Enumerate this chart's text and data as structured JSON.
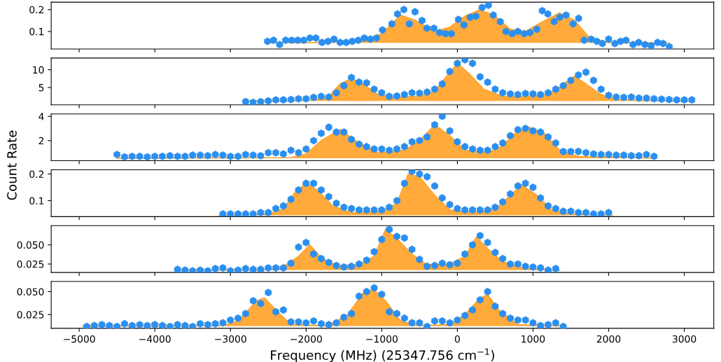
{
  "chart_data": [
    {
      "type": "scatter",
      "xlim": [
        -5370,
        3390
      ],
      "xticks": [
        {
          "value": -5000,
          "label": null
        },
        {
          "value": -4000,
          "label": null
        },
        {
          "value": -3000,
          "label": null
        },
        {
          "value": -2000,
          "label": null
        },
        {
          "value": -1000,
          "label": null
        },
        {
          "value": 0,
          "label": null
        },
        {
          "value": 1000,
          "label": null
        },
        {
          "value": 2000,
          "label": null
        },
        {
          "value": 3000,
          "label": null
        }
      ],
      "ylim": [
        0.02,
        0.234
      ],
      "yticks": [
        0.1,
        0.2
      ],
      "tick_labels": "y",
      "series": [
        {
          "type": "area",
          "color": "#ffa530",
          "x": [
            -2500,
            -1700,
            -1300,
            -1000,
            -750,
            -550,
            -300,
            -100,
            100,
            300,
            500,
            700,
            900,
            1100,
            1350,
            1550,
            1750,
            2000,
            2800
          ],
          "values": [
            0.048,
            0.05,
            0.055,
            0.09,
            0.175,
            0.15,
            0.1,
            0.12,
            0.17,
            0.2,
            0.17,
            0.11,
            0.1,
            0.14,
            0.185,
            0.15,
            0.07,
            0.05,
            0.048
          ]
        },
        {
          "type": "scatter",
          "color": "#2a8ff0",
          "x": [
            -2510,
            -2430,
            -2350,
            -2270,
            -2190,
            -2110,
            -2030,
            -1950,
            -1870,
            -1790,
            -1710,
            -1630,
            -1550,
            -1470,
            -1390,
            -1310,
            -1230,
            -1150,
            -1070,
            -990,
            -866,
            -792,
            -708,
            -635,
            -560,
            -467,
            -402,
            -310,
            -236,
            -155,
            -80,
            13,
            87,
            170,
            245,
            327,
            410,
            475,
            567,
            642,
            725,
            800,
            882,
            960,
            1050,
            1122,
            1196,
            1280,
            1354,
            1437,
            1530,
            1603,
            1677,
            1770,
            1844,
            1918,
            2000,
            2082,
            2156,
            2230,
            2322,
            2397,
            2480,
            2563,
            2647,
            2720,
            2803
          ],
          "values": [
            0.055,
            0.06,
            0.04,
            0.06,
            0.06,
            0.06,
            0.06,
            0.07,
            0.07,
            0.05,
            0.055,
            0.065,
            0.05,
            0.05,
            0.055,
            0.06,
            0.07,
            0.065,
            0.07,
            0.107,
            0.135,
            0.18,
            0.2,
            0.135,
            0.19,
            0.15,
            0.115,
            0.115,
            0.095,
            0.09,
            0.09,
            0.155,
            0.13,
            0.165,
            0.17,
            0.21,
            0.22,
            0.175,
            0.145,
            0.1,
            0.09,
            0.1,
            0.09,
            0.095,
            0.11,
            0.195,
            0.18,
            0.145,
            0.165,
            0.175,
            0.135,
            0.16,
            0.06,
            0.065,
            0.055,
            0.045,
            0.065,
            0.045,
            0.055,
            0.06,
            0.04,
            0.05,
            0.04,
            0.035,
            0.05,
            0.045,
            0.03
          ]
        }
      ]
    },
    {
      "type": "scatter",
      "xlim": [
        -5370,
        3390
      ],
      "xticks": [
        {
          "value": -5000,
          "label": null
        },
        {
          "value": -4000,
          "label": null
        },
        {
          "value": -3000,
          "label": null
        },
        {
          "value": -2000,
          "label": null
        },
        {
          "value": -1000,
          "label": null
        },
        {
          "value": 0,
          "label": null
        },
        {
          "value": 1000,
          "label": null
        },
        {
          "value": 2000,
          "label": null
        },
        {
          "value": 3000,
          "label": null
        }
      ],
      "ylim": [
        0.1,
        13.3
      ],
      "yticks": [
        5,
        10
      ],
      "tick_labels": "y",
      "series": [
        {
          "type": "area",
          "color": "#ffa530",
          "x": [
            -2800,
            -1900,
            -1700,
            -1550,
            -1400,
            -1250,
            -1050,
            -800,
            -500,
            -300,
            -150,
            0,
            150,
            350,
            600,
            900,
            1200,
            1400,
            1550,
            1700,
            1900,
            2100,
            2400,
            3100
          ],
          "values": [
            1.2,
            1.4,
            2.5,
            6,
            7.5,
            6,
            3,
            2.2,
            2.6,
            4,
            8,
            11.8,
            9,
            4.5,
            2.5,
            2.4,
            3,
            6,
            8.2,
            6,
            3,
            1.6,
            1.3,
            1.2
          ]
        },
        {
          "type": "scatter",
          "color": "#2a8ff0",
          "x": [
            -2800,
            -2700,
            -2600,
            -2500,
            -2400,
            -2300,
            -2200,
            -2100,
            -2000,
            -1900,
            -1800,
            -1700,
            -1600,
            -1500,
            -1400,
            -1300,
            -1200,
            -1100,
            -1000,
            -900,
            -800,
            -700,
            -600,
            -500,
            -400,
            -300,
            -200,
            -100,
            0,
            100,
            200,
            300,
            400,
            500,
            600,
            700,
            800,
            900,
            1000,
            1100,
            1200,
            1300,
            1400,
            1500,
            1600,
            1700,
            1800,
            1900,
            2000,
            2100,
            2200,
            2300,
            2400,
            2500,
            2600,
            2700,
            2800,
            2900,
            3000,
            3100
          ],
          "values": [
            1.0,
            0.8,
            1.0,
            1.2,
            1.5,
            1.5,
            1.6,
            1.8,
            1.8,
            2.2,
            2.5,
            2.3,
            3.5,
            5.5,
            7.8,
            6.5,
            6.3,
            4.5,
            3.5,
            2.5,
            2.6,
            3.0,
            3.5,
            3.4,
            3.7,
            4.5,
            6,
            9.5,
            11.8,
            12.8,
            11.8,
            8,
            6.5,
            4.5,
            3.5,
            3.2,
            3.0,
            3.3,
            3.2,
            3.0,
            3.5,
            4.5,
            5.5,
            7,
            8.5,
            9.3,
            7,
            4.5,
            2.8,
            2.3,
            2.2,
            2.3,
            2.0,
            2.0,
            1.8,
            1.7,
            1.6,
            1.5,
            1.5,
            1.5
          ]
        }
      ]
    },
    {
      "type": "scatter",
      "xlim": [
        -5370,
        3390
      ],
      "xticks": [
        {
          "value": -5000,
          "label": null
        },
        {
          "value": -4000,
          "label": null
        },
        {
          "value": -3000,
          "label": null
        },
        {
          "value": -2000,
          "label": null
        },
        {
          "value": -1000,
          "label": null
        },
        {
          "value": 0,
          "label": null
        },
        {
          "value": 1000,
          "label": null
        },
        {
          "value": 2000,
          "label": null
        },
        {
          "value": 3000,
          "label": null
        }
      ],
      "ylim": [
        0.34,
        4.2
      ],
      "yticks": [
        2,
        4
      ],
      "tick_labels": "y",
      "series": [
        {
          "type": "area",
          "color": "#ffa530",
          "x": [
            -4500,
            -2200,
            -2000,
            -1800,
            -1550,
            -1300,
            -1050,
            -700,
            -500,
            -300,
            -100,
            100,
            400,
            600,
            800,
            950,
            1150,
            1350,
            1600,
            2600
          ],
          "values": [
            0.55,
            0.6,
            0.9,
            2.0,
            2.9,
            1.8,
            1.0,
            1.2,
            2,
            3.3,
            2.4,
            1.2,
            1.0,
            1.6,
            2.8,
            3.1,
            2.6,
            1.2,
            0.7,
            0.55
          ]
        },
        {
          "type": "scatter",
          "color": "#2a8ff0",
          "x": [
            -4500,
            -4400,
            -4300,
            -4200,
            -4100,
            -4000,
            -3900,
            -3800,
            -3700,
            -3600,
            -3500,
            -3400,
            -3300,
            -3200,
            -3100,
            -3000,
            -2900,
            -2800,
            -2700,
            -2600,
            -2500,
            -2400,
            -2300,
            -2200,
            -2100,
            -2000,
            -1900,
            -1800,
            -1700,
            -1600,
            -1500,
            -1400,
            -1300,
            -1200,
            -1100,
            -1000,
            -900,
            -800,
            -700,
            -600,
            -500,
            -400,
            -300,
            -200,
            -100,
            0,
            100,
            200,
            300,
            400,
            500,
            600,
            700,
            800,
            900,
            1000,
            1100,
            1200,
            1300,
            1400,
            1500,
            1600,
            1700,
            1800,
            1900,
            2000,
            2100,
            2200,
            2300,
            2400,
            2500,
            2600
          ],
          "values": [
            0.85,
            0.65,
            0.7,
            0.7,
            0.65,
            0.7,
            0.7,
            0.75,
            0.7,
            0.7,
            0.8,
            0.8,
            0.75,
            0.85,
            0.8,
            0.7,
            0.7,
            0.85,
            0.8,
            0.75,
            1.0,
            1.0,
            0.9,
            1.2,
            1.0,
            1.3,
            2.0,
            2.6,
            3.1,
            2.7,
            2.7,
            2.1,
            1.7,
            1.5,
            1.3,
            1.3,
            1.2,
            1.3,
            1.5,
            1.9,
            2.0,
            2.3,
            3.3,
            4.0,
            2.8,
            1.9,
            1.5,
            1.3,
            1.2,
            1.2,
            1.5,
            1.8,
            2.4,
            2.9,
            3.0,
            2.8,
            2.7,
            2.3,
            1.8,
            1.1,
            1.1,
            1.1,
            1.0,
            0.9,
            0.85,
            0.85,
            0.8,
            0.8,
            0.75,
            0.75,
            0.85,
            0.7
          ]
        }
      ]
    },
    {
      "type": "scatter",
      "xlim": [
        -5370,
        3390
      ],
      "xticks": [
        {
          "value": -5000,
          "label": null
        },
        {
          "value": -4000,
          "label": null
        },
        {
          "value": -3000,
          "label": null
        },
        {
          "value": -2000,
          "label": null
        },
        {
          "value": -1000,
          "label": null
        },
        {
          "value": 0,
          "label": null
        },
        {
          "value": 1000,
          "label": null
        },
        {
          "value": 2000,
          "label": null
        },
        {
          "value": 3000,
          "label": null
        }
      ],
      "ylim": [
        0.04,
        0.216
      ],
      "yticks": [
        0.1,
        0.2
      ],
      "ylabel": "Count Rate",
      "tick_labels": "y",
      "series": [
        {
          "type": "area",
          "color": "#ffa530",
          "x": [
            -3150,
            -2500,
            -2300,
            -2150,
            -2000,
            -1850,
            -1650,
            -1400,
            -1000,
            -800,
            -650,
            -500,
            -300,
            -100,
            300,
            550,
            850,
            1050,
            1250,
            1500,
            2050
          ],
          "values": [
            0.045,
            0.05,
            0.07,
            0.13,
            0.165,
            0.14,
            0.08,
            0.055,
            0.058,
            0.09,
            0.2,
            0.19,
            0.12,
            0.065,
            0.055,
            0.08,
            0.16,
            0.12,
            0.065,
            0.05,
            0.045
          ]
        },
        {
          "type": "scatter",
          "color": "#2a8ff0",
          "x": [
            -3100,
            -3000,
            -2900,
            -2800,
            -2700,
            -2600,
            -2500,
            -2400,
            -2300,
            -2200,
            -2100,
            -2000,
            -1900,
            -1800,
            -1700,
            -1600,
            -1500,
            -1400,
            -1300,
            -1200,
            -1100,
            -1000,
            -900,
            -800,
            -700,
            -600,
            -500,
            -400,
            -300,
            -200,
            -100,
            0,
            100,
            200,
            300,
            400,
            500,
            600,
            700,
            800,
            900,
            1000,
            1100,
            1200,
            1300,
            1400,
            1500,
            1600,
            1700,
            1800,
            1900,
            2000
          ],
          "values": [
            0.05,
            0.05,
            0.05,
            0.05,
            0.05,
            0.055,
            0.055,
            0.07,
            0.08,
            0.105,
            0.14,
            0.165,
            0.165,
            0.14,
            0.115,
            0.09,
            0.075,
            0.07,
            0.065,
            0.065,
            0.065,
            0.065,
            0.075,
            0.1,
            0.165,
            0.21,
            0.2,
            0.19,
            0.155,
            0.11,
            0.085,
            0.07,
            0.065,
            0.065,
            0.065,
            0.065,
            0.075,
            0.095,
            0.125,
            0.155,
            0.165,
            0.15,
            0.11,
            0.08,
            0.07,
            0.06,
            0.06,
            0.055,
            0.055,
            0.05,
            0.05,
            0.055
          ]
        }
      ]
    },
    {
      "type": "scatter",
      "xlim": [
        -5370,
        3390
      ],
      "xticks": [
        {
          "value": -5000,
          "label": null
        },
        {
          "value": -4000,
          "label": null
        },
        {
          "value": -3000,
          "label": null
        },
        {
          "value": -2000,
          "label": null
        },
        {
          "value": -1000,
          "label": null
        },
        {
          "value": 0,
          "label": null
        },
        {
          "value": 1000,
          "label": null
        },
        {
          "value": 2000,
          "label": null
        },
        {
          "value": 3000,
          "label": null
        }
      ],
      "ylim": [
        0.014,
        0.075
      ],
      "yticks": [
        0.025,
        {
          "value": 0.05,
          "label": "0.050"
        }
      ],
      "tick_labels": "y",
      "series": [
        {
          "type": "area",
          "color": "#ffa530",
          "x": [
            -3700,
            -2500,
            -2300,
            -2100,
            -1950,
            -1800,
            -1600,
            -1300,
            -1100,
            -950,
            -800,
            -600,
            -400,
            -100,
            100,
            250,
            400,
            600,
            900,
            1350
          ],
          "values": [
            0.017,
            0.018,
            0.022,
            0.035,
            0.05,
            0.033,
            0.023,
            0.024,
            0.035,
            0.07,
            0.058,
            0.038,
            0.024,
            0.025,
            0.035,
            0.06,
            0.045,
            0.028,
            0.019,
            0.017
          ]
        },
        {
          "type": "scatter",
          "color": "#2a8ff0",
          "x": [
            -3700,
            -3600,
            -3500,
            -3400,
            -3300,
            -3200,
            -3100,
            -3000,
            -2900,
            -2800,
            -2700,
            -2600,
            -2500,
            -2400,
            -2300,
            -2200,
            -2100,
            -2000,
            -1900,
            -1800,
            -1700,
            -1600,
            -1500,
            -1400,
            -1300,
            -1200,
            -1100,
            -1000,
            -900,
            -800,
            -700,
            -600,
            -500,
            -400,
            -300,
            -200,
            -100,
            0,
            100,
            200,
            300,
            400,
            500,
            600,
            700,
            800,
            900,
            1000,
            1100,
            1200,
            1300
          ],
          "values": [
            0.018,
            0.017,
            0.016,
            0.017,
            0.016,
            0.019,
            0.02,
            0.016,
            0.017,
            0.019,
            0.018,
            0.018,
            0.02,
            0.02,
            0.02,
            0.026,
            0.047,
            0.053,
            0.038,
            0.032,
            0.027,
            0.023,
            0.021,
            0.022,
            0.025,
            0.03,
            0.041,
            0.057,
            0.07,
            0.061,
            0.059,
            0.044,
            0.031,
            0.022,
            0.023,
            0.026,
            0.024,
            0.026,
            0.038,
            0.05,
            0.062,
            0.053,
            0.04,
            0.032,
            0.025,
            0.025,
            0.022,
            0.021,
            0.02,
            0.017,
            0.019
          ]
        }
      ]
    },
    {
      "type": "scatter",
      "xlim": [
        -5370,
        3390
      ],
      "xticks": [
        {
          "value": -5000,
          "label": "−5000"
        },
        {
          "value": -4000,
          "label": "−4000"
        },
        {
          "value": -3000,
          "label": "−3000"
        },
        {
          "value": -2000,
          "label": "−2000"
        },
        {
          "value": -1000,
          "label": "−1000"
        },
        0,
        1000,
        2000,
        3000
      ],
      "ylim": [
        0.01,
        0.061
      ],
      "yticks": [
        0.025,
        {
          "value": 0.05,
          "label": "0.050"
        }
      ],
      "xlabel": "Frequency (MHz) (25347.756 cm$^{−1}$)",
      "series": [
        {
          "type": "area",
          "color": "#ffa530",
          "x": [
            -4950,
            -3100,
            -2900,
            -2650,
            -2550,
            -2400,
            -2200,
            -1700,
            -1450,
            -1250,
            -1100,
            -950,
            -750,
            -500,
            -100,
            100,
            300,
            400,
            550,
            800,
            1400
          ],
          "values": [
            0.0125,
            0.013,
            0.018,
            0.04,
            0.043,
            0.03,
            0.014,
            0.013,
            0.025,
            0.048,
            0.052,
            0.04,
            0.018,
            0.013,
            0.014,
            0.025,
            0.043,
            0.047,
            0.03,
            0.014,
            0.0125
          ]
        },
        {
          "type": "scatter",
          "color": "#2a8ff0",
          "x": [
            -4900,
            -4800,
            -4700,
            -4600,
            -4500,
            -4400,
            -4300,
            -4200,
            -4100,
            -4000,
            -3900,
            -3800,
            -3700,
            -3600,
            -3500,
            -3400,
            -3300,
            -3200,
            -3100,
            -3000,
            -2900,
            -2800,
            -2700,
            -2600,
            -2500,
            -2400,
            -2300,
            -2200,
            -2100,
            -2000,
            -1900,
            -1800,
            -1700,
            -1600,
            -1500,
            -1400,
            -1300,
            -1200,
            -1100,
            -1000,
            -900,
            -800,
            -700,
            -600,
            -500,
            -400,
            -300,
            -200,
            -100,
            0,
            100,
            200,
            300,
            400,
            500,
            600,
            700,
            800,
            900,
            1000,
            1100,
            1200,
            1300,
            1400
          ],
          "values": [
            0.012,
            0.013,
            0.014,
            0.013,
            0.012,
            0.015,
            0.013,
            0.014,
            0.013,
            0.014,
            0.013,
            0.012,
            0.014,
            0.013,
            0.012,
            0.015,
            0.014,
            0.015,
            0.016,
            0.019,
            0.021,
            0.026,
            0.04,
            0.037,
            0.049,
            0.028,
            0.03,
            0.017,
            0.017,
            0.016,
            0.018,
            0.015,
            0.014,
            0.016,
            0.022,
            0.026,
            0.045,
            0.05,
            0.054,
            0.047,
            0.028,
            0.026,
            0.021,
            0.016,
            0.016,
            0.012,
            0.018,
            0.018,
            0.016,
            0.019,
            0.024,
            0.03,
            0.041,
            0.05,
            0.034,
            0.026,
            0.021,
            0.019,
            0.019,
            0.016,
            0.013,
            0.014,
            0.016,
            0.012
          ]
        }
      ]
    }
  ]
}
